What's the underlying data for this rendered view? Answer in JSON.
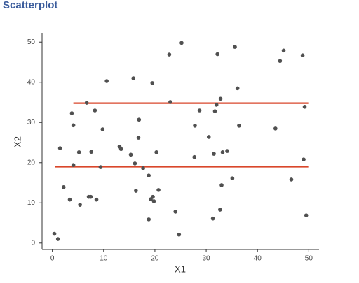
{
  "chart_data": {
    "type": "scatter",
    "title": "Scatterplot",
    "x_label": "X1",
    "y_label": "X2",
    "point_color": "#505050",
    "x": [
      0.4,
      1.1,
      1.5,
      2.2,
      3.4,
      3.8,
      4.1,
      4.1,
      5.2,
      5.4,
      6.7,
      7.1,
      7.5,
      7.6,
      8.3,
      8.6,
      9.4,
      9.8,
      10.6,
      13.1,
      13.4,
      15.3,
      15.8,
      16.1,
      16.3,
      16.8,
      16.9,
      17.7,
      18.8,
      18.8,
      19.2,
      19.5,
      19.6,
      19.8,
      20.3,
      20.7,
      22.8,
      23.0,
      24.0,
      24.7,
      25.2,
      27.7,
      27.8,
      28.7,
      30.5,
      31.3,
      31.5,
      31.7,
      32.0,
      32.2,
      32.7,
      32.8,
      33.0,
      33.2,
      34.1,
      35.1,
      35.6,
      36.1,
      36.4,
      43.5,
      44.4,
      45.1,
      46.6,
      48.8,
      49.0,
      49.2,
      49.5
    ],
    "values": [
      2.3,
      1.0,
      23.6,
      13.9,
      10.8,
      32.3,
      29.3,
      19.4,
      22.6,
      9.5,
      34.9,
      11.5,
      11.5,
      22.7,
      33.0,
      10.8,
      18.9,
      28.3,
      40.3,
      24.0,
      23.4,
      22.0,
      41.0,
      19.8,
      13.0,
      26.2,
      30.7,
      18.6,
      16.8,
      5.9,
      10.9,
      39.8,
      11.5,
      10.4,
      22.6,
      13.2,
      46.9,
      35.1,
      7.8,
      2.1,
      49.8,
      21.4,
      29.2,
      33.0,
      26.4,
      6.1,
      22.2,
      32.8,
      34.4,
      47.0,
      8.3,
      35.9,
      14.4,
      22.6,
      22.9,
      16.1,
      48.8,
      38.5,
      29.2,
      28.5,
      45.3,
      47.9,
      15.8,
      46.7,
      20.8,
      33.9,
      6.9
    ],
    "lines": [
      {
        "x": [
          4.1,
          49.9
        ],
        "values": [
          34.8,
          34.8
        ],
        "color": "#d9472b"
      },
      {
        "x": [
          0.5,
          49.9
        ],
        "values": [
          19.0,
          19.0
        ],
        "color": "#d9472b"
      }
    ],
    "xlim": [
      -2,
      52
    ],
    "ylim": [
      -1.6,
      52.3
    ],
    "xticks": [
      0,
      10,
      20,
      30,
      40,
      50
    ],
    "yticks": [
      0,
      10,
      20,
      30,
      40,
      50
    ]
  }
}
